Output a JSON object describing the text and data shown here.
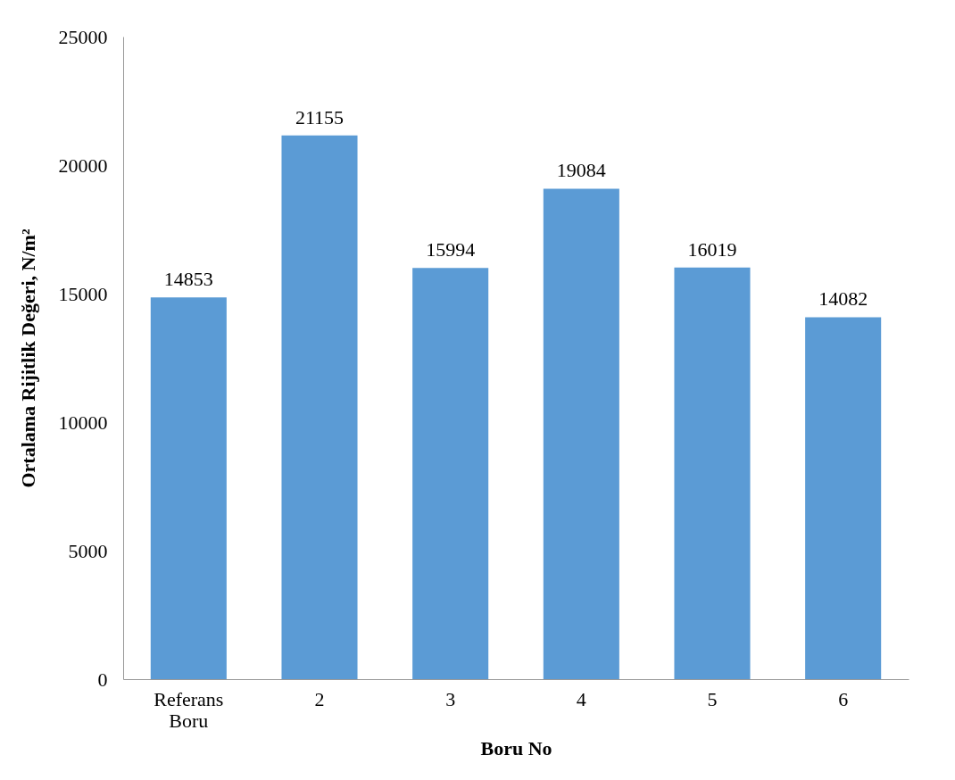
{
  "chart_data": {
    "type": "bar",
    "xlabel": "Boru No",
    "ylabel": "Ortalama Rijitlik Değeri, N/m²",
    "categories": [
      "Referans\nBoru",
      "2",
      "3",
      "4",
      "5",
      "6"
    ],
    "values": [
      14853,
      21155,
      15994,
      19084,
      16019,
      14082
    ],
    "color": "#5b9bd5",
    "ylim": [
      0,
      25000
    ],
    "yticks": [
      0,
      5000,
      10000,
      15000,
      20000,
      25000
    ],
    "grid": false,
    "data_labels": true
  }
}
